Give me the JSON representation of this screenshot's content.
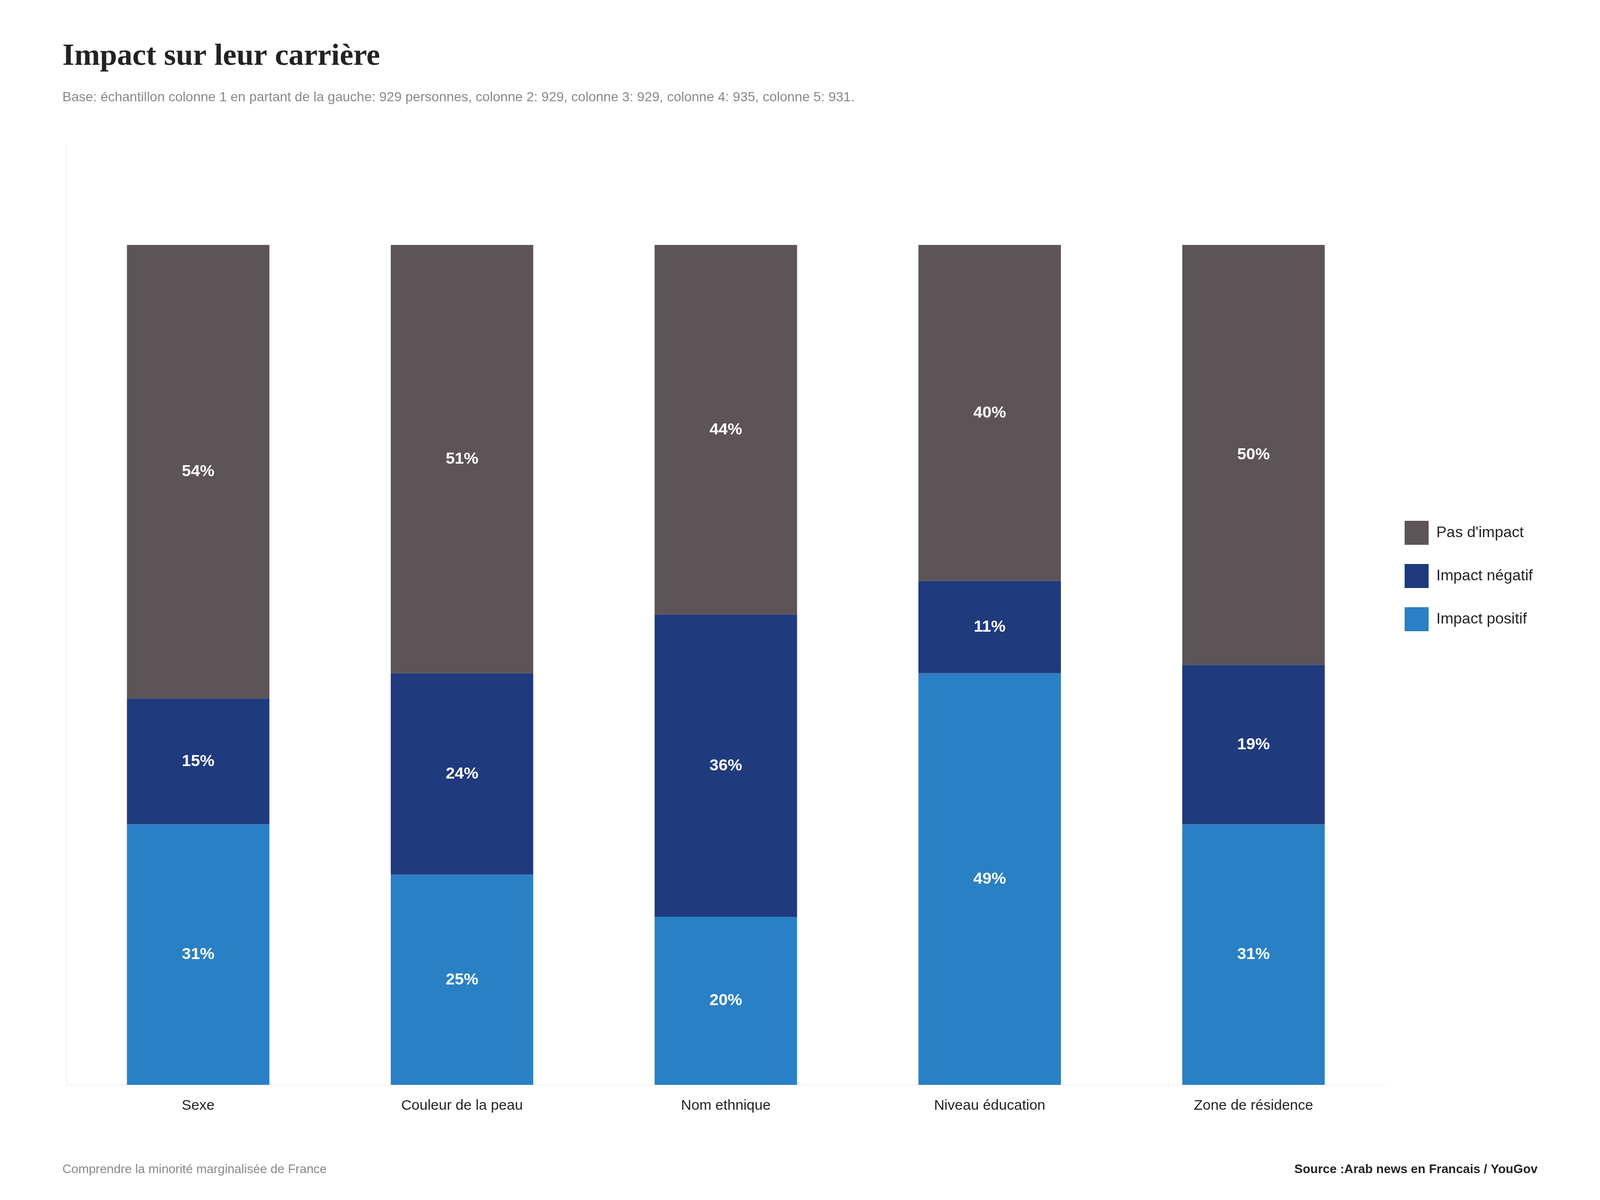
{
  "chart_data": {
    "type": "bar",
    "title": "Impact sur leur carrière",
    "subtitle": "Base: échantillon colonne 1 en partant de la gauche: 929 personnes, colonne 2: 929, colonne 3: 929, colonne 4: 935, colonne 5: 931.",
    "annotations": [
      "Comprendre la minorité marginalisée de France",
      "Source :Arab news en Francais / YouGov"
    ],
    "categories": [
      "Sexe",
      "Couleur de la peau",
      "Nom ethnique",
      "Niveau éducation",
      "Zone de résidence"
    ],
    "series": [
      {
        "name": "Impact positif",
        "color": "#2980c4",
        "values": [
          31,
          25,
          20,
          49,
          31
        ],
        "value_labels": [
          "31%",
          "25%",
          "20%",
          "49%",
          "31%"
        ]
      },
      {
        "name": "Impact négatif",
        "color": "#1f3a7d",
        "values": [
          15,
          24,
          36,
          11,
          19
        ],
        "value_labels": [
          "15%",
          "24%",
          "36%",
          "11%",
          "19%"
        ]
      },
      {
        "name": "Pas d'impact",
        "color": "#5c5457",
        "values": [
          54,
          51,
          44,
          40,
          50
        ],
        "value_labels": [
          "54%",
          "51%",
          "44%",
          "40%",
          "50%"
        ]
      }
    ],
    "ylim": [
      0,
      112
    ],
    "stacked": true,
    "data_labels": true,
    "tick_labels": "x",
    "grid": false,
    "legend": "right"
  }
}
